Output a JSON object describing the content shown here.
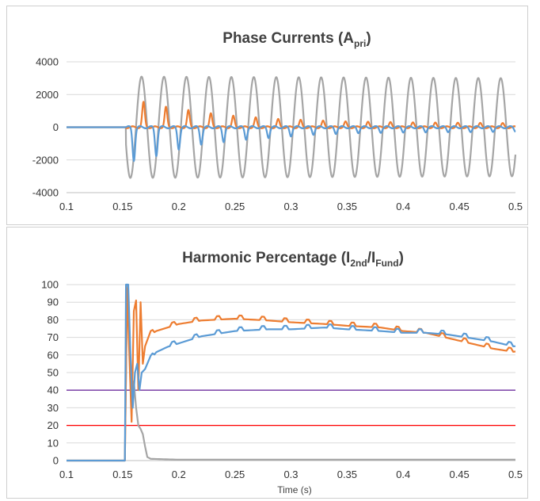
{
  "colors": {
    "series_blue": "#5b9bd5",
    "series_orange": "#ed7d31",
    "series_gray": "#a5a5a5",
    "threshold_purple": "#7030a0",
    "threshold_red": "#ff0000",
    "gridline": "#d9d9d9",
    "axis": "#bfbfbf"
  },
  "chart_data": [
    {
      "type": "line",
      "title": {
        "main": "Phase Currents (A",
        "sub": "pri",
        "close": ")"
      },
      "xlabel": "",
      "ylabel": "",
      "xlim": [
        0.1,
        0.5
      ],
      "ylim": [
        -4000,
        4000
      ],
      "x_ticks": [
        "0.1",
        "0.15",
        "0.2",
        "0.25",
        "0.3",
        "0.35",
        "0.4",
        "0.45",
        "0.5"
      ],
      "y_ticks": [
        "4000",
        "2000",
        "0",
        "-2000",
        "-4000"
      ],
      "grid": "horizontal",
      "legend": "none",
      "signal": {
        "fault_time": 0.153,
        "frequency_hz": 50
      },
      "series": [
        {
          "color_key": "series_blue",
          "pre_fault_value": 0,
          "negative_peaks_approx": [
            -2000,
            -1700,
            -1300,
            -1000,
            -850,
            -700,
            -600,
            -500,
            -400,
            -350,
            -300,
            -280,
            -260,
            -250,
            -240,
            -230,
            -220,
            -210,
            -200,
            -200
          ]
        },
        {
          "color_key": "series_orange",
          "pre_fault_value": 0,
          "positive_peaks_approx": [
            1500,
            1200,
            1000,
            800,
            650,
            550,
            450,
            400,
            350,
            300,
            280,
            260,
            240,
            230,
            220,
            210,
            200,
            200,
            200,
            200
          ]
        },
        {
          "color_key": "series_gray",
          "pre_fault_value": 0,
          "amplitude_approx": 3100,
          "amplitude_end_approx": 3000
        }
      ]
    },
    {
      "type": "line",
      "title": {
        "p1": "Harmonic Percentage (I",
        "s1": "2nd",
        "p2": "/I",
        "s2": "Fund",
        "p3": ")"
      },
      "xlabel": "Time (s)",
      "ylabel": "",
      "xlim": [
        0.1,
        0.5
      ],
      "ylim": [
        0,
        100
      ],
      "x_ticks": [
        "0.1",
        "0.15",
        "0.2",
        "0.25",
        "0.3",
        "0.35",
        "0.4",
        "0.45",
        "0.5"
      ],
      "y_ticks": [
        "100",
        "90",
        "80",
        "70",
        "60",
        "50",
        "40",
        "30",
        "20",
        "10",
        "0"
      ],
      "grid": "horizontal",
      "legend": "none",
      "thresholds": [
        {
          "value": 40,
          "color_key": "threshold_purple"
        },
        {
          "value": 20,
          "color_key": "threshold_red"
        }
      ],
      "series": [
        {
          "color_key": "series_orange",
          "x": [
            0.1,
            0.152,
            0.154,
            0.156,
            0.158,
            0.16,
            0.162,
            0.164,
            0.166,
            0.168,
            0.17,
            0.175,
            0.18,
            0.19,
            0.2,
            0.22,
            0.25,
            0.28,
            0.3,
            0.33,
            0.35,
            0.38,
            0.4,
            0.42,
            0.44,
            0.46,
            0.48,
            0.5
          ],
          "y": [
            0,
            0,
            98,
            60,
            22,
            85,
            91,
            40,
            90,
            55,
            65,
            72,
            74,
            76,
            78,
            80,
            81,
            80,
            79,
            78,
            77,
            76,
            74,
            73,
            70,
            67,
            64,
            62
          ]
        },
        {
          "color_key": "series_blue",
          "x": [
            0.1,
            0.152,
            0.153,
            0.155,
            0.157,
            0.159,
            0.161,
            0.163,
            0.165,
            0.167,
            0.17,
            0.175,
            0.18,
            0.19,
            0.2,
            0.22,
            0.25,
            0.28,
            0.3,
            0.33,
            0.35,
            0.38,
            0.4,
            0.42,
            0.44,
            0.46,
            0.48,
            0.5
          ],
          "y": [
            0,
            0,
            100,
            100,
            60,
            30,
            50,
            55,
            40,
            50,
            52,
            58,
            62,
            65,
            67,
            71,
            74,
            75,
            75,
            76,
            75,
            74,
            73,
            73,
            72,
            70,
            68,
            65
          ]
        },
        {
          "color_key": "series_gray",
          "x": [
            0.1,
            0.152,
            0.154,
            0.156,
            0.158,
            0.16,
            0.162,
            0.164,
            0.166,
            0.168,
            0.17,
            0.172,
            0.175,
            0.2,
            0.3,
            0.4,
            0.5
          ],
          "y": [
            0,
            0,
            100,
            65,
            35,
            45,
            30,
            20,
            18,
            15,
            8,
            2,
            1,
            0.5,
            0.5,
            0.5,
            0.5
          ]
        }
      ]
    }
  ]
}
